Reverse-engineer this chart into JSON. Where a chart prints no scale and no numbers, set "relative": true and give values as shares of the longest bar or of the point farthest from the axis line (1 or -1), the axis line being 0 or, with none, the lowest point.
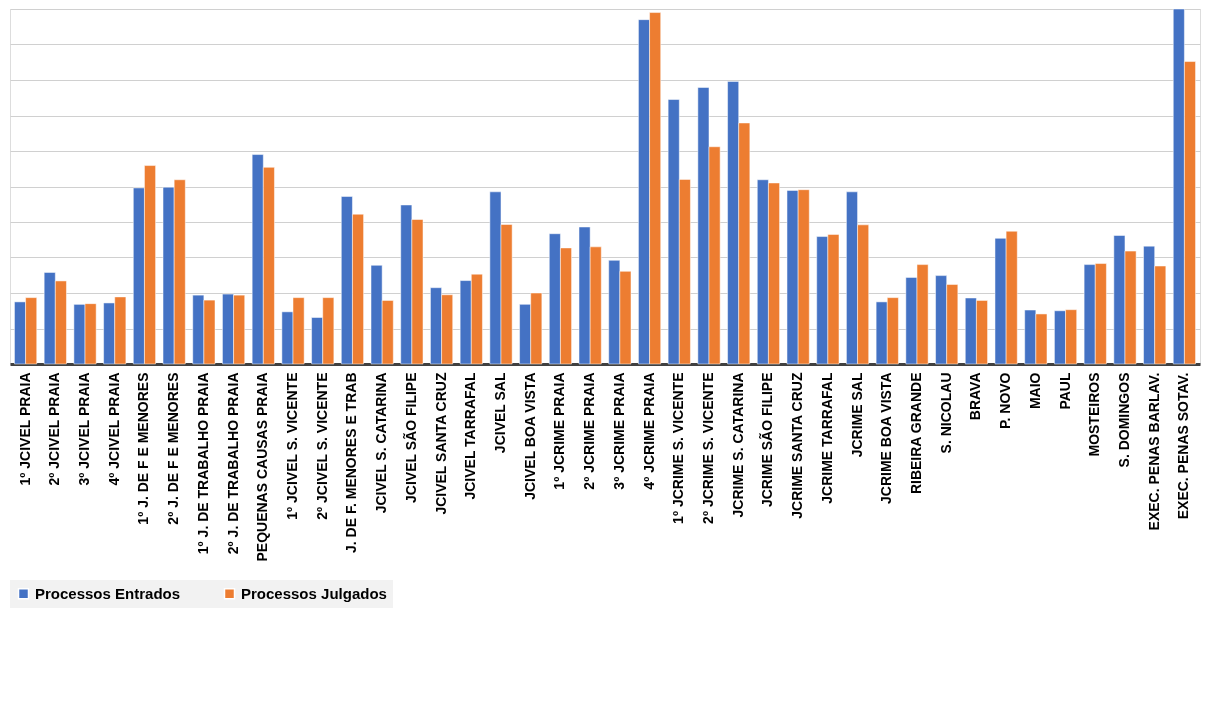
{
  "chart_data": {
    "type": "bar",
    "relative": true,
    "grid": "y",
    "legend": "bottom",
    "categories": [
      "1º JCIVEL PRAIA",
      "2º JCIVEL PRAIA",
      "3º JCIVEL PRAIA",
      "4º JCIVEL PRAIA",
      "1º J. DE F E MENORES",
      "2º J. DE F E MENORES",
      "1º J. DE TRABALHO PRAIA",
      "2º J. DE TRABALHO PRAIA",
      "PEQUENAS CAUSAS PRAIA",
      "1º JCIVEL S. VICENTE",
      "2º JCIVEL S. VICENTE",
      "J. DE F. MENORES E TRAB",
      "JCIVEL S. CATARINA",
      "JCIVEL SÃO FILIPE",
      "JCIVEL SANTA CRUZ",
      "JCIVEL TARRAFAL",
      "JCIVEL SAL",
      "JCIVEL BOA VISTA",
      "1º JCRIME PRAIA",
      "2º JCRIME PRAIA",
      "3º JCRIME PRAIA",
      "4º JCRIME PRAIA",
      "1º JCRIME S. VICENTE",
      "2º JCRIME S. VICENTE",
      "JCRIME S. CATARINA",
      "JCRIME SÃO FILIPE",
      "JCRIME SANTA CRUZ",
      "JCRIME TARRAFAL",
      "JCRIME SAL",
      "JCRIME BOA VISTA",
      "RIBEIRA GRANDE",
      "S. NICOLAU",
      "BRAVA",
      "P. NOVO",
      "MAIO",
      "PAUL",
      "MOSTEIROS",
      "S. DOMINGOS",
      "EXEC. PENAS BARLAV.",
      "EXEC. PENAS SOTAV."
    ],
    "series": [
      {
        "name": "Processos Entrados",
        "color": "#4472c4",
        "values": [
          0.175,
          0.258,
          0.168,
          0.172,
          0.496,
          0.498,
          0.194,
          0.197,
          0.59,
          0.147,
          0.131,
          0.472,
          0.278,
          0.448,
          0.215,
          0.235,
          0.485,
          0.168,
          0.367,
          0.386,
          0.292,
          0.97,
          0.745,
          0.779,
          0.796,
          0.519,
          0.489,
          0.359,
          0.485,
          0.175,
          0.244,
          0.249,
          0.186,
          0.354,
          0.152,
          0.15,
          0.28,
          0.362,
          0.332,
          1
        ]
      },
      {
        "name": "Processos Julgados",
        "color": "#ed7d31",
        "values": [
          0.187,
          0.234,
          0.17,
          0.189,
          0.559,
          0.519,
          0.18,
          0.194,
          0.554,
          0.187,
          0.187,
          0.422,
          0.179,
          0.407,
          0.195,
          0.253,
          0.393,
          0.2,
          0.327,
          0.33,
          0.261,
          0.99,
          0.52,
          0.612,
          0.679,
          0.51,
          0.491,
          0.365,
          0.392,
          0.187,
          0.28,
          0.224,
          0.179,
          0.374,
          0.141,
          0.153,
          0.283,
          0.318,
          0.276,
          0.852
        ]
      }
    ]
  }
}
